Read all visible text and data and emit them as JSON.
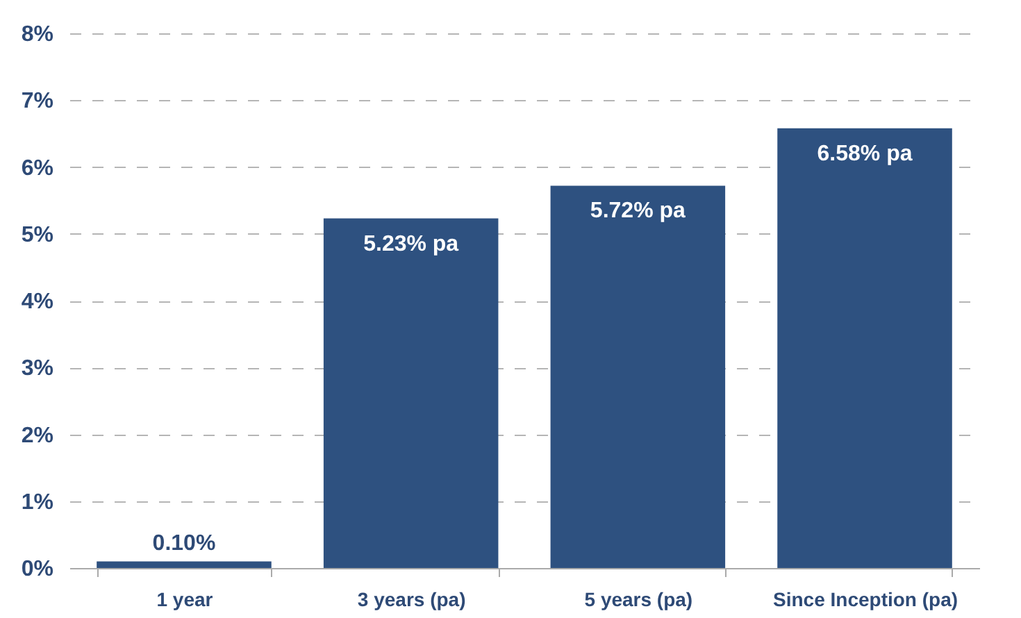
{
  "chart_data": {
    "type": "bar",
    "categories": [
      "1 year",
      "3 years (pa)",
      "5 years (pa)",
      "Since Inception (pa)"
    ],
    "values": [
      0.1,
      5.23,
      5.72,
      6.58
    ],
    "value_labels": [
      "0.10%",
      "5.23% pa",
      "5.72% pa",
      "6.58% pa"
    ],
    "color": "#2e5180",
    "ylim": [
      0,
      8
    ],
    "yticks": [
      {
        "value": 0,
        "label": "0%"
      },
      {
        "value": 1,
        "label": "1%"
      },
      {
        "value": 2,
        "label": "2%"
      },
      {
        "value": 3,
        "label": "3%"
      },
      {
        "value": 4,
        "label": "4%"
      },
      {
        "value": 5,
        "label": "5%"
      },
      {
        "value": 6,
        "label": "6%"
      },
      {
        "value": 7,
        "label": "7%"
      },
      {
        "value": 8,
        "label": "8%"
      }
    ],
    "grid": "y"
  }
}
